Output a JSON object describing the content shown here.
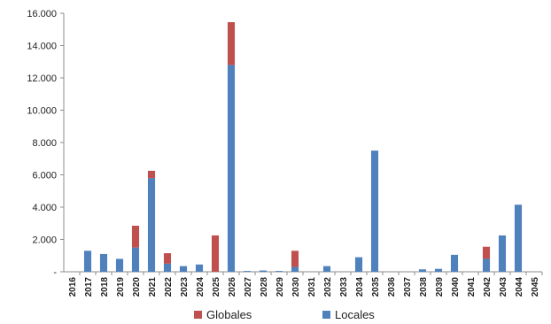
{
  "chart_data": {
    "type": "bar",
    "stacked": true,
    "title": "",
    "xlabel": "",
    "ylabel": "",
    "ylim": [
      0,
      16000
    ],
    "yticks": [
      0,
      2000,
      4000,
      6000,
      8000,
      10000,
      12000,
      14000,
      16000
    ],
    "ytick_labels": [
      "-",
      "2.000",
      "4.000",
      "6.000",
      "8.000",
      "10.000",
      "12.000",
      "14.000",
      "16.000"
    ],
    "grid": false,
    "legend_position": "bottom",
    "categories": [
      "2016",
      "2017",
      "2018",
      "2019",
      "2020",
      "2021",
      "2022",
      "2023",
      "2024",
      "2025",
      "2026",
      "2027",
      "2028",
      "2029",
      "2030",
      "2031",
      "2032",
      "2033",
      "2034",
      "2035",
      "2036",
      "2037",
      "2038",
      "2039",
      "2040",
      "2041",
      "2042",
      "2043",
      "2044",
      "2045"
    ],
    "series": [
      {
        "name": "Locales",
        "color": "#4F81BD",
        "values": [
          0,
          1300,
          1100,
          800,
          1500,
          5800,
          500,
          350,
          450,
          0,
          12800,
          50,
          80,
          50,
          300,
          0,
          350,
          0,
          900,
          7500,
          0,
          0,
          150,
          180,
          1050,
          0,
          800,
          2250,
          4150,
          0
        ]
      },
      {
        "name": "Globales",
        "color": "#C0504D",
        "values": [
          0,
          0,
          0,
          0,
          1350,
          450,
          650,
          0,
          0,
          2250,
          2650,
          0,
          0,
          0,
          1000,
          0,
          0,
          0,
          0,
          0,
          0,
          0,
          0,
          0,
          0,
          0,
          750,
          0,
          0,
          0
        ]
      }
    ]
  }
}
